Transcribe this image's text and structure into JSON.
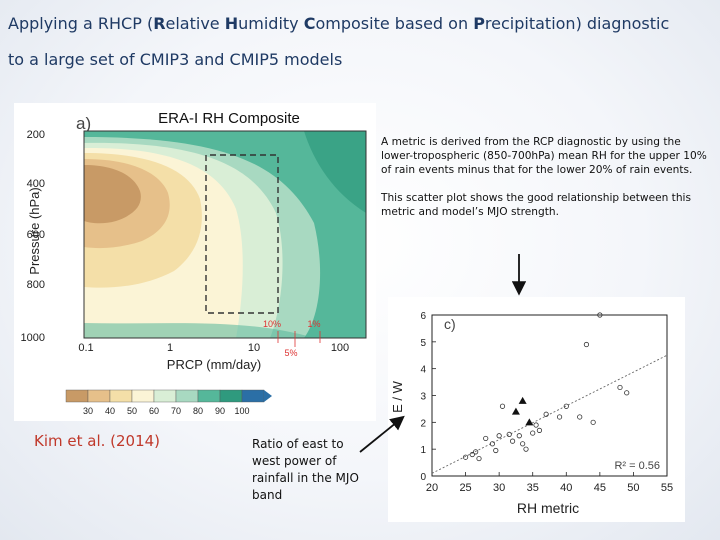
{
  "slide": {
    "title": {
      "line1": {
        "p1": "Applying a RHCP (",
        "b1": "R",
        "p2": "elative ",
        "b2": "H",
        "p3": "umidity ",
        "b3": "C",
        "p4": "omposite based on ",
        "b4": "P",
        "p5": "recipitation)  diagnostic"
      },
      "line2": "to a large  set of CMIP3 and CMIP5 models"
    },
    "description": {
      "para1": "A metric is derived from the RCP diagnostic by using the lower-tropospheric (850-700hPa) mean RH for the upper 10% of rain events minus that for the lower 20% of rain events.",
      "para2": "This scatter plot shows the good relationship between this metric and model’s MJO strength."
    },
    "citation": "Kim et al. (2014)",
    "ratio_note": "Ratio of east to west power of rainfall in the MJO band"
  },
  "chart_data": [
    {
      "type": "heatmap",
      "panel_label": "a)",
      "title": "ERA-I RH Composite",
      "xlabel": "PRCP   (mm/day)",
      "ylabel": "Pressure (hPa)",
      "x_scale": "log",
      "xlim": [
        0.1,
        200
      ],
      "ylim": [
        1000,
        200
      ],
      "x_ticks": [
        "0.1",
        "1",
        "10",
        "100"
      ],
      "y_ticks": [
        "200",
        "400",
        "600",
        "800",
        "1000"
      ],
      "annotations": [
        "10%",
        "1%",
        "5%"
      ],
      "colorbar": {
        "levels": [
          "30",
          "40",
          "50",
          "60",
          "70",
          "80",
          "90",
          "100"
        ],
        "colors": [
          "#c89a66",
          "#e6c08a",
          "#f4dfa8",
          "#fbf4d6",
          "#d9eed6",
          "#a8d9c1",
          "#55b79a",
          "#2f9a7e",
          "#2b6fa6"
        ]
      }
    },
    {
      "type": "scatter",
      "panel_label": "c)",
      "xlabel": "RH metric",
      "ylabel": "E / W",
      "xlim": [
        20,
        55
      ],
      "ylim": [
        0,
        6
      ],
      "x_ticks": [
        "20",
        "25",
        "30",
        "35",
        "40",
        "45",
        "50",
        "55"
      ],
      "y_ticks": [
        "0",
        "1",
        "2",
        "3",
        "4",
        "5",
        "6"
      ],
      "r2_label": "R² = 0.56",
      "fit_line": {
        "x": [
          20,
          55
        ],
        "y": [
          0.1,
          4.5
        ]
      },
      "points_circle": [
        {
          "x": 25,
          "y": 0.7
        },
        {
          "x": 26,
          "y": 0.8
        },
        {
          "x": 26.5,
          "y": 0.9
        },
        {
          "x": 27,
          "y": 0.65
        },
        {
          "x": 28,
          "y": 1.4
        },
        {
          "x": 29,
          "y": 1.2
        },
        {
          "x": 29.5,
          "y": 0.95
        },
        {
          "x": 30,
          "y": 1.5
        },
        {
          "x": 30.5,
          "y": 2.6
        },
        {
          "x": 31.5,
          "y": 1.55
        },
        {
          "x": 32,
          "y": 1.3
        },
        {
          "x": 33,
          "y": 1.5
        },
        {
          "x": 33.5,
          "y": 1.2
        },
        {
          "x": 34,
          "y": 1.0
        },
        {
          "x": 35,
          "y": 1.6
        },
        {
          "x": 35.5,
          "y": 1.9
        },
        {
          "x": 36,
          "y": 1.7
        },
        {
          "x": 37,
          "y": 2.3
        },
        {
          "x": 39,
          "y": 2.2
        },
        {
          "x": 40,
          "y": 2.6
        },
        {
          "x": 42,
          "y": 2.2
        },
        {
          "x": 43,
          "y": 4.9
        },
        {
          "x": 44,
          "y": 2.0
        },
        {
          "x": 45,
          "y": 6.0
        },
        {
          "x": 48,
          "y": 3.3
        },
        {
          "x": 49,
          "y": 3.1
        }
      ],
      "points_triangle": [
        {
          "x": 32.5,
          "y": 2.4
        },
        {
          "x": 33.5,
          "y": 2.8
        },
        {
          "x": 34.5,
          "y": 2.0
        }
      ]
    }
  ],
  "colors": {
    "title": "#1f3a64",
    "citation": "#c0392b"
  }
}
